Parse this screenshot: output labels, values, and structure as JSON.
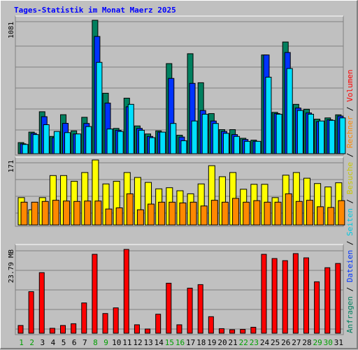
{
  "title": "Tages-Statistik im Monat Maerz 2025",
  "colors": {
    "background": "#c0c0c0",
    "panel": "#c0c0c0",
    "grid": "#808080",
    "title": "#0000ff",
    "hits": "#00805f",
    "files": "#0033ff",
    "pages": "#00e0ff",
    "visits": "#ffff00",
    "sites": "#ff8800",
    "volume": "#ff0000",
    "weekday_label": "#000000",
    "weekend_label": "#00a000"
  },
  "chart_data": [
    {
      "type": "bar",
      "panel": "top",
      "ylabel": "1081",
      "ylim": [
        0,
        1081
      ],
      "categories": [
        "1",
        "2",
        "3",
        "4",
        "5",
        "6",
        "7",
        "8",
        "9",
        "10",
        "11",
        "12",
        "13",
        "14",
        "15",
        "16",
        "17",
        "18",
        "19",
        "20",
        "21",
        "22",
        "23",
        "24",
        "25",
        "26",
        "27",
        "28",
        "29",
        "30",
        "31"
      ],
      "series": [
        {
          "name": "Anfragen",
          "values": [
            90,
            175,
            340,
            140,
            316,
            185,
            295,
            1081,
            490,
            205,
            450,
            225,
            160,
            185,
            730,
            150,
            810,
            575,
            325,
            195,
            195,
            125,
            110,
            800,
            335,
            905,
            400,
            360,
            280,
            290,
            315
          ]
        },
        {
          "name": "Dateien",
          "values": [
            80,
            165,
            300,
            130,
            246,
            160,
            245,
            950,
            410,
            190,
            380,
            205,
            140,
            175,
            610,
            135,
            570,
            350,
            265,
            180,
            155,
            115,
            100,
            800,
            325,
            820,
            370,
            330,
            260,
            275,
            305
          ]
        },
        {
          "name": "Seiten",
          "values": [
            75,
            155,
            235,
            180,
            171,
            160,
            220,
            740,
            200,
            180,
            400,
            190,
            130,
            175,
            245,
            105,
            265,
            320,
            245,
            165,
            140,
            100,
            100,
            620,
            320,
            690,
            350,
            320,
            265,
            270,
            290
          ]
        }
      ]
    },
    {
      "type": "bar",
      "panel": "middle",
      "ylabel": "171",
      "ylim": [
        0,
        171
      ],
      "categories": [
        "1",
        "2",
        "3",
        "4",
        "5",
        "6",
        "7",
        "8",
        "9",
        "10",
        "11",
        "12",
        "13",
        "14",
        "15",
        "16",
        "17",
        "18",
        "19",
        "20",
        "21",
        "22",
        "23",
        "24",
        "25",
        "26",
        "27",
        "28",
        "29",
        "30",
        "31"
      ],
      "series": [
        {
          "name": "Besuche",
          "values": [
            72,
            40,
            72,
            130,
            130,
            115,
            138,
            171,
            108,
            115,
            138,
            125,
            112,
            95,
            98,
            90,
            82,
            108,
            156,
            127,
            138,
            94,
            107,
            107,
            72,
            131,
            138,
            123,
            109,
            100,
            111
          ]
        },
        {
          "name": "Rechner",
          "values": [
            60,
            60,
            62,
            65,
            63,
            62,
            63,
            63,
            42,
            45,
            82,
            40,
            55,
            60,
            60,
            58,
            60,
            50,
            65,
            60,
            70,
            60,
            64,
            60,
            60,
            82,
            62,
            65,
            48,
            46,
            64
          ]
        }
      ]
    },
    {
      "type": "bar",
      "panel": "bottom",
      "ylabel": "23.79 MB",
      "ylim": [
        0,
        23.79
      ],
      "categories": [
        "1",
        "2",
        "3",
        "4",
        "5",
        "6",
        "7",
        "8",
        "9",
        "10",
        "11",
        "12",
        "13",
        "14",
        "15",
        "16",
        "17",
        "18",
        "19",
        "20",
        "21",
        "22",
        "23",
        "24",
        "25",
        "26",
        "27",
        "28",
        "29",
        "30",
        "31"
      ],
      "series": [
        {
          "name": "Volumen",
          "values": [
            2.2,
            11.8,
            17.2,
            1.4,
            2.2,
            2.7,
            8.6,
            22.4,
            5.6,
            7.2,
            23.79,
            2.4,
            1.2,
            5.4,
            14.2,
            2.4,
            12.8,
            13.8,
            4.7,
            1.3,
            1.0,
            1.1,
            1.7,
            22.4,
            21.2,
            20.6,
            22.6,
            21.4,
            14.6,
            18.6,
            19.8
          ]
        }
      ]
    }
  ],
  "x_labels": [
    {
      "text": "1",
      "weekend": true
    },
    {
      "text": "2",
      "weekend": true
    },
    {
      "text": "3",
      "weekend": false
    },
    {
      "text": "4",
      "weekend": false
    },
    {
      "text": "5",
      "weekend": false
    },
    {
      "text": "6",
      "weekend": false
    },
    {
      "text": "7",
      "weekend": false
    },
    {
      "text": "8",
      "weekend": true
    },
    {
      "text": "9",
      "weekend": true
    },
    {
      "text": "10",
      "weekend": false
    },
    {
      "text": "11",
      "weekend": false
    },
    {
      "text": "12",
      "weekend": false
    },
    {
      "text": "13",
      "weekend": false
    },
    {
      "text": "14",
      "weekend": false
    },
    {
      "text": "15",
      "weekend": true
    },
    {
      "text": "16",
      "weekend": true
    },
    {
      "text": "17",
      "weekend": false
    },
    {
      "text": "18",
      "weekend": false
    },
    {
      "text": "19",
      "weekend": false
    },
    {
      "text": "20",
      "weekend": false
    },
    {
      "text": "21",
      "weekend": false
    },
    {
      "text": "22",
      "weekend": true
    },
    {
      "text": "23",
      "weekend": true
    },
    {
      "text": "24",
      "weekend": false
    },
    {
      "text": "25",
      "weekend": false
    },
    {
      "text": "26",
      "weekend": false
    },
    {
      "text": "27",
      "weekend": false
    },
    {
      "text": "28",
      "weekend": false
    },
    {
      "text": "29",
      "weekend": true
    },
    {
      "text": "30",
      "weekend": true
    },
    {
      "text": "31",
      "weekend": false
    }
  ],
  "legend": {
    "top": [
      {
        "text": "Anfragen",
        "color": "#00805f"
      },
      {
        "text": " / ",
        "color": "#000000"
      },
      {
        "text": "Dateien",
        "color": "#0033ff"
      },
      {
        "text": " / ",
        "color": "#000000"
      },
      {
        "text": "Seiten",
        "color": "#00c8e0"
      },
      {
        "text": " / ",
        "color": "#000000"
      },
      {
        "text": "Besuche",
        "color": "#c8c800"
      },
      {
        "text": " / ",
        "color": "#000000"
      },
      {
        "text": "Rechner",
        "color": "#ff8800"
      },
      {
        "text": " / ",
        "color": "#000000"
      },
      {
        "text": "Volumen",
        "color": "#ff0000"
      }
    ]
  }
}
